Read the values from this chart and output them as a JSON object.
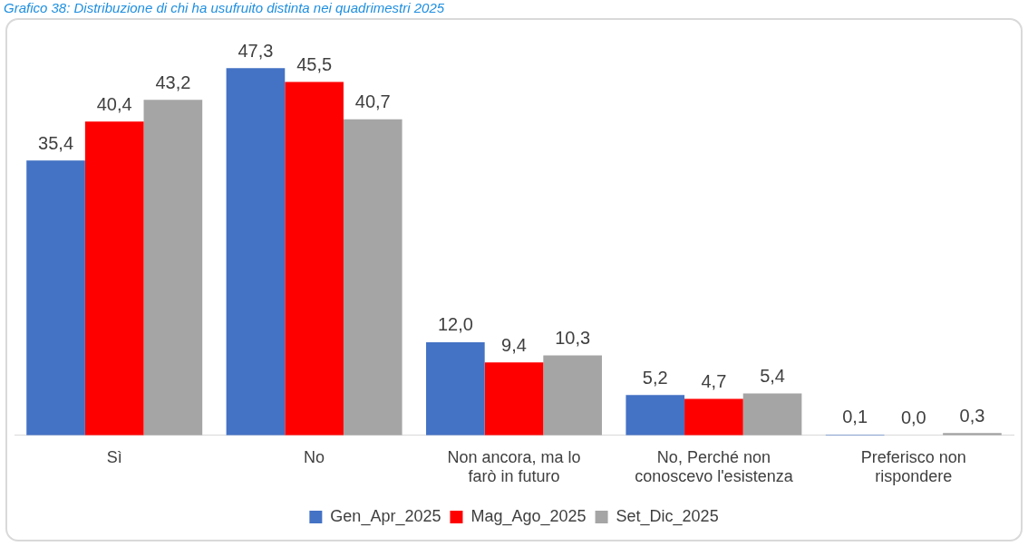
{
  "chart_data": {
    "type": "bar",
    "title": "Grafico 38: Distribuzione di chi ha usufruito distinta nei quadrimestri 2025",
    "categories": [
      "Sì",
      "No",
      "Non ancora, ma lo farò in futuro",
      "No, Perché non conoscevo l'esistenza",
      "Preferisco non rispondere"
    ],
    "series": [
      {
        "name": "Gen_Apr_2025",
        "color": "#4472c4",
        "values": [
          35.4,
          47.3,
          12.0,
          5.2,
          0.1
        ],
        "value_labels": [
          "35,4",
          "47,3",
          "12,0",
          "5,2",
          "0,1"
        ]
      },
      {
        "name": "Mag_Ago_2025",
        "color": "#ff0000",
        "values": [
          40.4,
          45.5,
          9.4,
          4.7,
          0.0
        ],
        "value_labels": [
          "40,4",
          "45,5",
          "9,4",
          "4,7",
          "0,0"
        ]
      },
      {
        "name": "Set_Dic_2025",
        "color": "#a5a5a5",
        "values": [
          43.2,
          40.7,
          10.3,
          5.4,
          0.3
        ],
        "value_labels": [
          "43,2",
          "40,7",
          "10,3",
          "5,4",
          "0,3"
        ]
      }
    ],
    "legend": "bottom",
    "grid": false
  }
}
